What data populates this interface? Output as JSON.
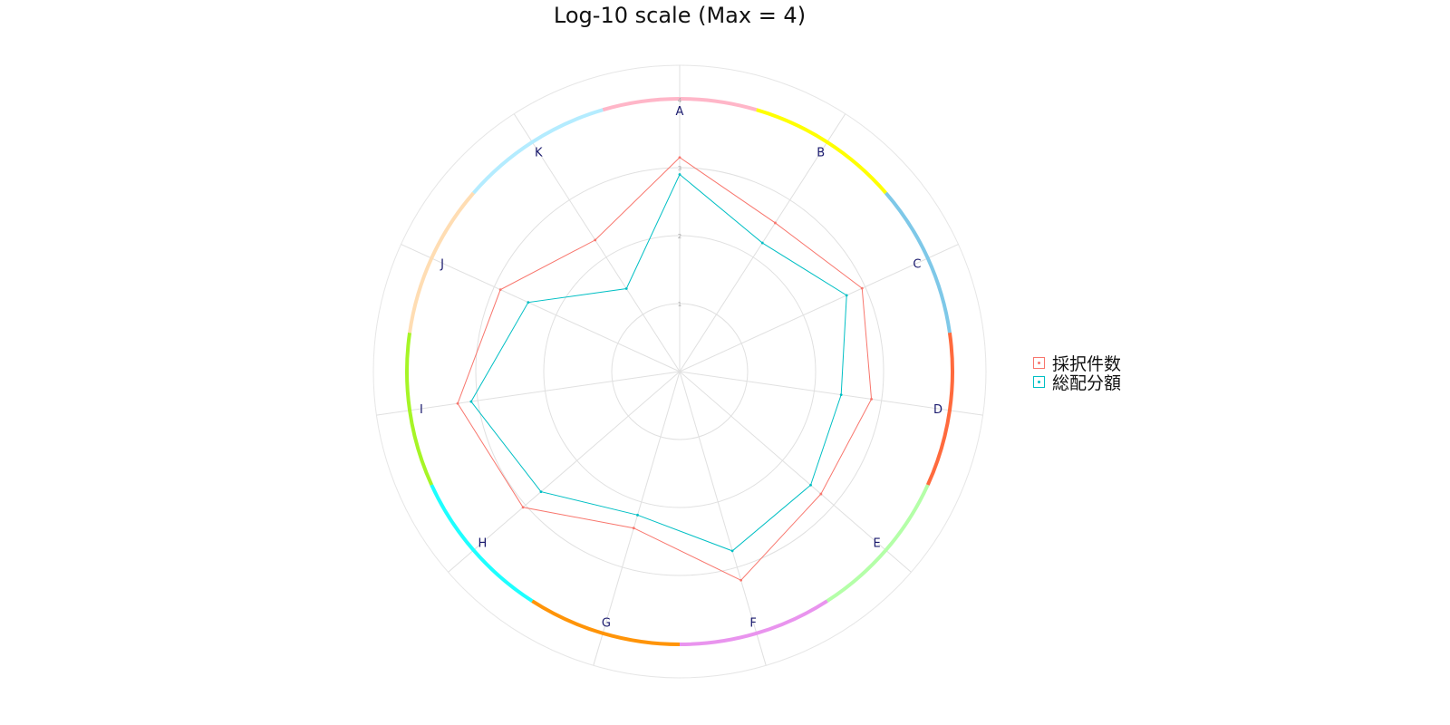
{
  "chart_data": {
    "type": "radar",
    "title": "Log-10 scale (Max = 4)",
    "scale": "log10",
    "rlim": [
      0,
      4
    ],
    "radial_ticks": [
      "1",
      "2",
      "3",
      "4"
    ],
    "categories": [
      "A",
      "B",
      "C",
      "D",
      "E",
      "F",
      "G",
      "H",
      "I",
      "J",
      "K"
    ],
    "category_colors": [
      "#ffb6c8",
      "#ffff00",
      "#7ec8e8",
      "#ff6a3d",
      "#b4ffa8",
      "#e994ee",
      "#ff9408",
      "#1effff",
      "#a6f526",
      "#ffddb3",
      "#b4ecff"
    ],
    "series": [
      {
        "name": "採択件数",
        "color": "#f8766d",
        "values": [
          3.15,
          2.6,
          2.95,
          2.85,
          2.75,
          3.2,
          2.4,
          3.05,
          3.3,
          2.9,
          2.3
        ]
      },
      {
        "name": "総配分額",
        "color": "#00bfc4",
        "values": [
          2.9,
          2.25,
          2.7,
          2.4,
          2.55,
          2.75,
          2.2,
          2.7,
          3.1,
          2.45,
          1.45
        ]
      }
    ],
    "legend_position": "right",
    "grid": true
  }
}
